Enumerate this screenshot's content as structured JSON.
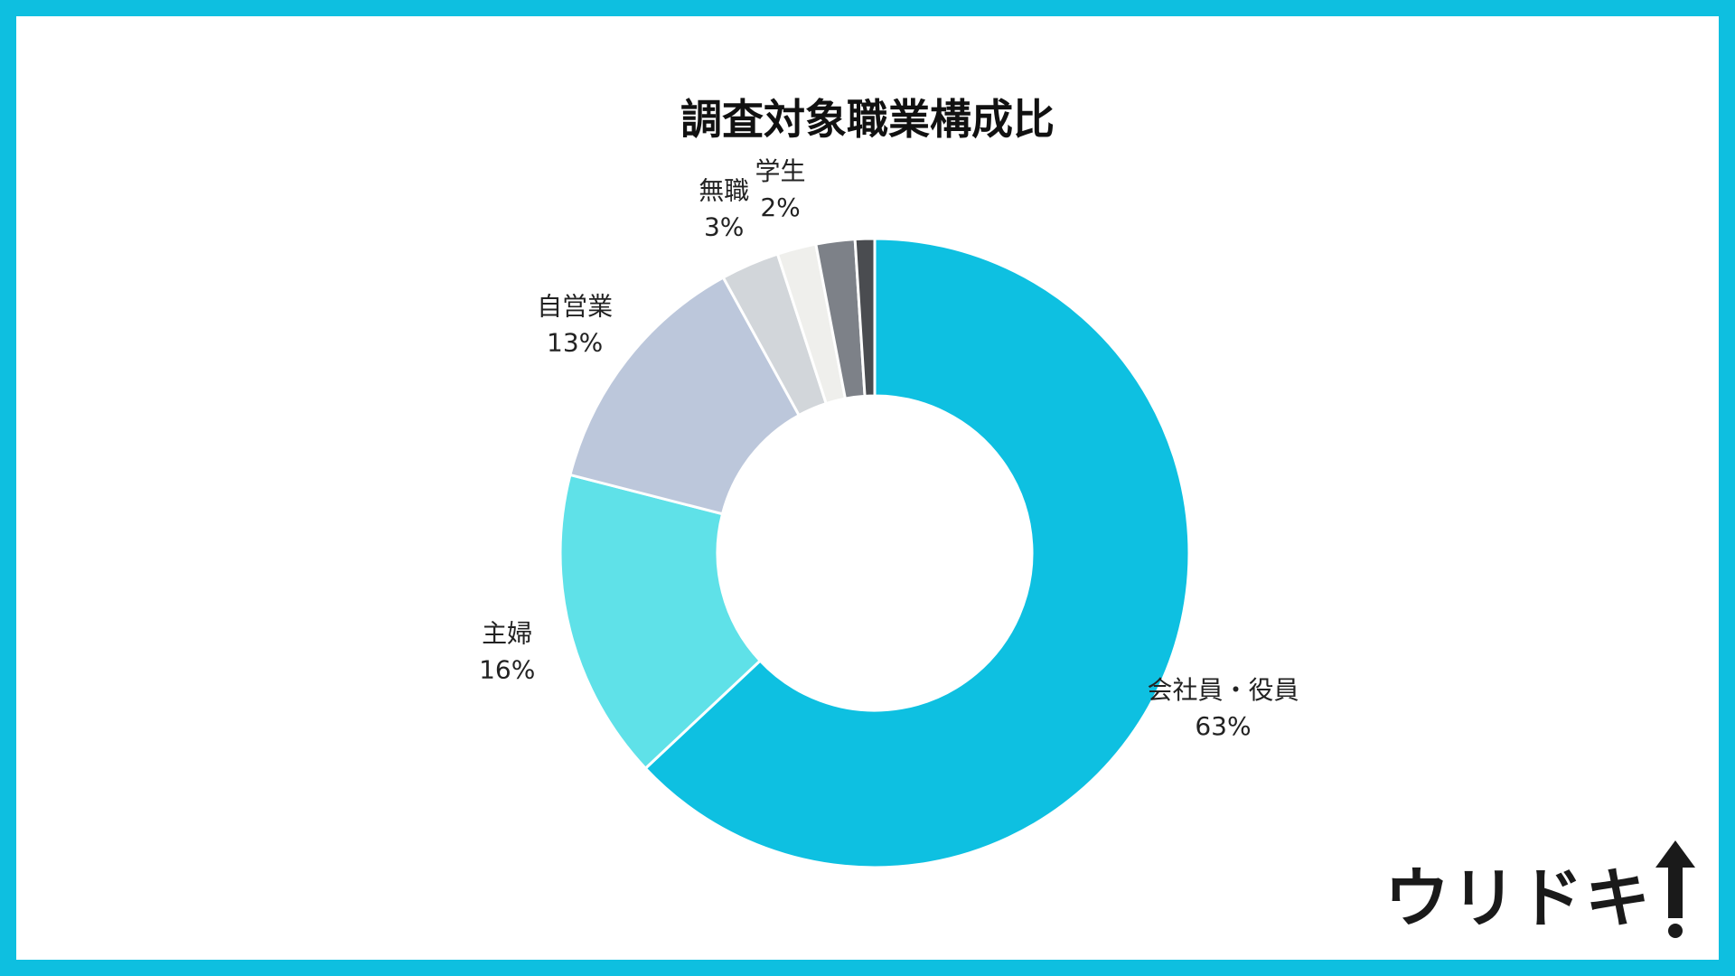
{
  "chart_data": {
    "type": "pie",
    "donut": true,
    "title": "調査対象職業構成比",
    "categories": [
      "会社員・役員",
      "主婦",
      "自営業",
      "無職",
      "学生",
      "",
      ""
    ],
    "values": [
      63,
      16,
      13,
      3,
      2,
      2,
      1
    ],
    "value_labels": [
      "63%",
      "16%",
      "13%",
      "3%",
      "2%",
      "",
      ""
    ],
    "colors": [
      "#0ec0e1",
      "#5fe1e8",
      "#bcc7db",
      "#d2d6da",
      "#efefec",
      "#7d8188",
      "#4a4c50"
    ],
    "start_angle": "12 o'clock",
    "direction": "clockwise",
    "legend": "none"
  },
  "logo": {
    "text": "ウリドキ"
  }
}
